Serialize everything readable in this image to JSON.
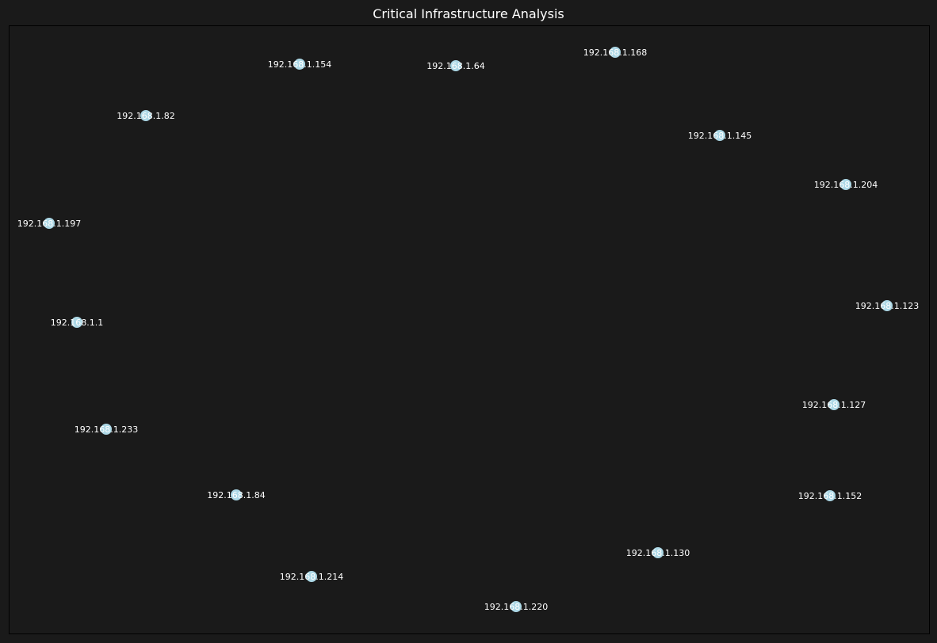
{
  "title": "Critical Infrastructure Analysis",
  "colors": {
    "background": "#1a1a1a",
    "node_fill": "#add8e6",
    "label": "#ffffff",
    "frame": "#000000"
  },
  "nodes": [
    {
      "label": "192.168.1.154"
    },
    {
      "label": "192.168.1.64"
    },
    {
      "label": "192.168.1.168"
    },
    {
      "label": "192.168.1.82"
    },
    {
      "label": "192.168.1.145"
    },
    {
      "label": "192.168.1.204"
    },
    {
      "label": "192.168.1.197"
    },
    {
      "label": "192.168.1.123"
    },
    {
      "label": "192.168.1.1"
    },
    {
      "label": "192.168.1.127"
    },
    {
      "label": "192.168.1.233"
    },
    {
      "label": "192.168.1.84"
    },
    {
      "label": "192.168.1.152"
    },
    {
      "label": "192.168.1.130"
    },
    {
      "label": "192.168.1.214"
    },
    {
      "label": "192.168.1.220"
    }
  ]
}
